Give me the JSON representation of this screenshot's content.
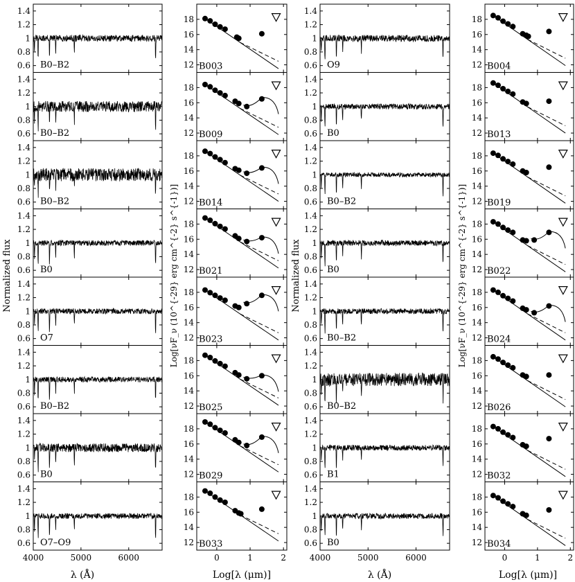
{
  "figure": {
    "spectra_ylabel": "Normalized flux",
    "spectra_xlabel": "λ (Å)",
    "sed_ylabel": "Log[νF_ν (10^{-29} erg cm^{-2} s^{-1})]",
    "sed_xlabel": "Log[λ (μm)]",
    "spec_xticks": [
      "4000",
      "5000",
      "6000"
    ],
    "spec_yticks": [
      "0.6",
      "0.8",
      "1",
      "1.2",
      "1.4"
    ],
    "sed_xticks": [
      "0",
      "1",
      "2"
    ],
    "sed_yticks": [
      "12",
      "14",
      "16",
      "18"
    ]
  },
  "chart_data": {
    "type": "scatter",
    "description_free": true,
    "spectra": {
      "xlim": [
        4000,
        6700
      ],
      "ylim": [
        0.5,
        1.5
      ],
      "line_absorption_wavelengths": [
        4026,
        4102,
        4340,
        4471,
        4861,
        6563
      ]
    },
    "sed": {
      "xlim": [
        -0.6,
        2.1
      ],
      "ylim": [
        11,
        20
      ],
      "upper_limit_x": 1.78,
      "upper_limit_y": 18.3
    },
    "stars": [
      {
        "id": "B003",
        "sptype": "B0–B2",
        "col": 0,
        "row": 0,
        "noise": 0.03,
        "sed_offset": 0.0,
        "points": [
          [
            -0.35,
            18.1
          ],
          [
            -0.2,
            17.8
          ],
          [
            -0.05,
            17.35
          ],
          [
            0.1,
            17.0
          ],
          [
            0.25,
            16.7
          ],
          [
            0.6,
            15.65
          ],
          [
            0.66,
            15.5
          ],
          [
            1.35,
            16.1
          ]
        ],
        "ir_excess": false
      },
      {
        "id": "B009",
        "sptype": "B0–B2",
        "col": 0,
        "row": 1,
        "noise": 0.05,
        "points": [
          [
            -0.35,
            18.4
          ],
          [
            -0.2,
            18.1
          ],
          [
            -0.05,
            17.65
          ],
          [
            0.1,
            17.3
          ],
          [
            0.25,
            16.95
          ],
          [
            0.55,
            16.2
          ],
          [
            0.66,
            15.9
          ],
          [
            0.9,
            15.5
          ],
          [
            1.35,
            16.5
          ]
        ],
        "ir_excess": true,
        "excess_peak": 16.7
      },
      {
        "id": "B014",
        "sptype": "B0–B2",
        "col": 0,
        "row": 2,
        "noise": 0.06,
        "points": [
          [
            -0.35,
            18.6
          ],
          [
            -0.2,
            18.3
          ],
          [
            -0.05,
            17.85
          ],
          [
            0.1,
            17.5
          ],
          [
            0.25,
            17.1
          ],
          [
            0.55,
            16.3
          ],
          [
            0.66,
            16.1
          ],
          [
            0.9,
            15.7
          ],
          [
            1.35,
            16.4
          ]
        ],
        "ir_excess": true,
        "excess_peak": 16.5
      },
      {
        "id": "B021",
        "sptype": "B0",
        "col": 0,
        "row": 3,
        "noise": 0.025,
        "points": [
          [
            -0.35,
            18.8
          ],
          [
            -0.2,
            18.5
          ],
          [
            -0.05,
            18.05
          ],
          [
            0.1,
            17.7
          ],
          [
            0.25,
            17.35
          ],
          [
            0.55,
            16.45
          ],
          [
            0.66,
            16.1
          ],
          [
            0.9,
            15.7
          ],
          [
            1.35,
            16.2
          ]
        ],
        "ir_excess": true,
        "excess_peak": 16.3
      },
      {
        "id": "B023",
        "sptype": "O7",
        "col": 0,
        "row": 4,
        "noise": 0.025,
        "points": [
          [
            -0.35,
            18.3
          ],
          [
            -0.2,
            17.95
          ],
          [
            -0.05,
            17.6
          ],
          [
            0.1,
            17.25
          ],
          [
            0.25,
            16.95
          ],
          [
            0.55,
            16.2
          ],
          [
            0.66,
            16.0
          ],
          [
            0.9,
            16.5
          ],
          [
            1.35,
            17.6
          ]
        ],
        "ir_excess": true,
        "excess_peak": 17.7
      },
      {
        "id": "B025",
        "sptype": "B0–B2",
        "col": 0,
        "row": 5,
        "noise": 0.025,
        "points": [
          [
            -0.35,
            18.7
          ],
          [
            -0.2,
            18.4
          ],
          [
            -0.05,
            17.95
          ],
          [
            0.1,
            17.6
          ],
          [
            0.25,
            17.25
          ],
          [
            0.55,
            16.4
          ],
          [
            0.66,
            16.1
          ],
          [
            0.9,
            15.6
          ],
          [
            1.35,
            16.0
          ]
        ],
        "ir_excess": true,
        "excess_peak": 16.1
      },
      {
        "id": "B029",
        "sptype": "B0",
        "col": 0,
        "row": 6,
        "noise": 0.04,
        "points": [
          [
            -0.35,
            18.9
          ],
          [
            -0.2,
            18.6
          ],
          [
            -0.05,
            18.15
          ],
          [
            0.1,
            17.8
          ],
          [
            0.25,
            17.45
          ],
          [
            0.55,
            16.55
          ],
          [
            0.66,
            16.2
          ],
          [
            0.9,
            15.8
          ],
          [
            1.35,
            16.9
          ]
        ],
        "ir_excess": true,
        "excess_peak": 17.0
      },
      {
        "id": "B033",
        "sptype": "O7–O9",
        "col": 0,
        "row": 7,
        "noise": 0.025,
        "points": [
          [
            -0.35,
            18.8
          ],
          [
            -0.2,
            18.5
          ],
          [
            -0.05,
            18.0
          ],
          [
            0.1,
            17.6
          ],
          [
            0.25,
            17.3
          ],
          [
            0.55,
            16.2
          ],
          [
            0.66,
            15.9
          ],
          [
            0.72,
            15.8
          ],
          [
            1.35,
            16.4
          ]
        ],
        "ir_excess": false
      },
      {
        "id": "B004",
        "sptype": "O9",
        "col": 1,
        "row": 0,
        "noise": 0.03,
        "points": [
          [
            -0.35,
            18.5
          ],
          [
            -0.2,
            18.2
          ],
          [
            -0.05,
            17.75
          ],
          [
            0.1,
            17.4
          ],
          [
            0.25,
            17.05
          ],
          [
            0.55,
            16.1
          ],
          [
            0.66,
            15.9
          ],
          [
            0.72,
            15.75
          ],
          [
            1.35,
            16.4
          ]
        ],
        "ir_excess": false
      },
      {
        "id": "B013",
        "sptype": "B0",
        "col": 1,
        "row": 1,
        "noise": 0.025,
        "points": [
          [
            -0.35,
            18.6
          ],
          [
            -0.2,
            18.3
          ],
          [
            -0.05,
            17.85
          ],
          [
            0.1,
            17.5
          ],
          [
            0.25,
            17.15
          ],
          [
            0.55,
            16.1
          ],
          [
            0.66,
            15.9
          ],
          [
            1.35,
            16.2
          ]
        ],
        "ir_excess": false
      },
      {
        "id": "B019",
        "sptype": "B0–B2",
        "col": 1,
        "row": 2,
        "noise": 0.02,
        "points": [
          [
            -0.35,
            18.35
          ],
          [
            -0.2,
            18.05
          ],
          [
            -0.05,
            17.6
          ],
          [
            0.1,
            17.25
          ],
          [
            0.25,
            16.9
          ],
          [
            0.55,
            16.0
          ],
          [
            0.66,
            15.8
          ],
          [
            1.35,
            16.5
          ]
        ],
        "ir_excess": false
      },
      {
        "id": "B022",
        "sptype": "B0",
        "col": 1,
        "row": 3,
        "noise": 0.025,
        "points": [
          [
            -0.35,
            18.3
          ],
          [
            -0.2,
            18.0
          ],
          [
            -0.05,
            17.55
          ],
          [
            0.1,
            17.2
          ],
          [
            0.25,
            16.9
          ],
          [
            0.55,
            15.9
          ],
          [
            0.66,
            15.8
          ],
          [
            0.9,
            15.9
          ],
          [
            1.35,
            16.9
          ]
        ],
        "ir_excess": true,
        "excess_peak": 17.0
      },
      {
        "id": "B024",
        "sptype": "B0–B2",
        "col": 1,
        "row": 4,
        "noise": 0.025,
        "points": [
          [
            -0.35,
            18.3
          ],
          [
            -0.2,
            18.0
          ],
          [
            -0.05,
            17.55
          ],
          [
            0.1,
            17.2
          ],
          [
            0.25,
            16.85
          ],
          [
            0.55,
            15.9
          ],
          [
            0.66,
            15.7
          ],
          [
            0.9,
            15.3
          ],
          [
            1.35,
            16.2
          ]
        ],
        "ir_excess": true,
        "excess_peak": 16.3
      },
      {
        "id": "B026",
        "sptype": "B0–B2",
        "col": 1,
        "row": 5,
        "noise": 0.06,
        "points": [
          [
            -0.35,
            18.5
          ],
          [
            -0.2,
            18.2
          ],
          [
            -0.05,
            17.75
          ],
          [
            0.1,
            17.4
          ],
          [
            0.25,
            17.05
          ],
          [
            0.55,
            16.1
          ],
          [
            0.66,
            15.9
          ],
          [
            1.35,
            16.1
          ]
        ],
        "ir_excess": false
      },
      {
        "id": "B032",
        "sptype": "B1",
        "col": 1,
        "row": 6,
        "noise": 0.025,
        "points": [
          [
            -0.35,
            18.3
          ],
          [
            -0.2,
            18.0
          ],
          [
            -0.05,
            17.55
          ],
          [
            0.1,
            17.2
          ],
          [
            0.25,
            16.85
          ],
          [
            0.55,
            15.9
          ],
          [
            0.66,
            15.7
          ],
          [
            1.35,
            16.7
          ]
        ],
        "ir_excess": false
      },
      {
        "id": "B034",
        "sptype": "B0",
        "col": 1,
        "row": 7,
        "noise": 0.025,
        "points": [
          [
            -0.35,
            18.2
          ],
          [
            -0.2,
            17.9
          ],
          [
            -0.05,
            17.45
          ],
          [
            0.1,
            17.1
          ],
          [
            0.25,
            16.75
          ],
          [
            0.55,
            15.8
          ],
          [
            0.66,
            15.6
          ],
          [
            1.35,
            16.3
          ]
        ],
        "ir_excess": false
      }
    ]
  }
}
